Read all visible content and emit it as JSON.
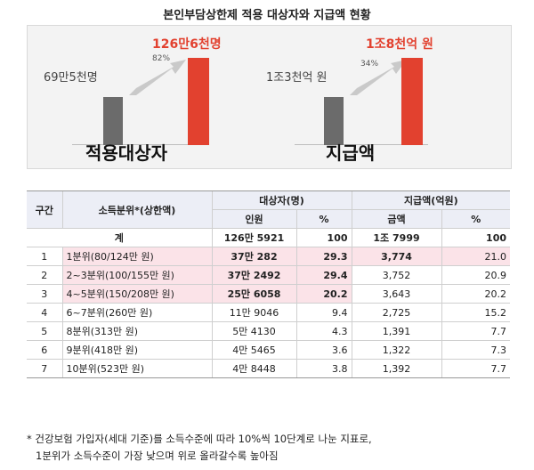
{
  "title": "본인부담상한제 적용 대상자와 지급액 현황",
  "infographic": {
    "left_group": {
      "label": "적용대상자",
      "before": "69만5천명",
      "after": "126만6천명",
      "growth": "82%",
      "before_relative": 0.55,
      "after_relative": 1.0
    },
    "right_group": {
      "label": "지급액",
      "before": "1조3천억 원",
      "after": "1조8천억 원",
      "growth": "34%",
      "before_relative": 0.55,
      "after_relative": 1.0
    },
    "colors": {
      "before": "#6b6b6b",
      "after": "#e2412f"
    }
  },
  "table": {
    "headers": {
      "section": "구간",
      "income": "소득분위*(상한액)",
      "recipients": "대상자(명)",
      "amount": "지급액(억원)",
      "count": "인원",
      "pct": "%",
      "sum": "금액",
      "pct2": "%"
    },
    "total": {
      "label": "계",
      "count": "126만 5921",
      "pct": "100",
      "amount": "1조 7999",
      "pct2": "100"
    },
    "rows": [
      {
        "id": "1",
        "income": "1분위(80/124만 원)",
        "count": "37만 282",
        "pct": "29.3",
        "amount": "3,774",
        "pct2": "21.0"
      },
      {
        "id": "2",
        "income": "2~3분위(100/155만 원)",
        "count": "37만 2492",
        "pct": "29.4",
        "amount": "3,752",
        "pct2": "20.9"
      },
      {
        "id": "3",
        "income": "4~5분위(150/208만 원)",
        "count": "25만 6058",
        "pct": "20.2",
        "amount": "3,643",
        "pct2": "20.2"
      },
      {
        "id": "4",
        "income": "6~7분위(260만 원)",
        "count": "11만 9046",
        "pct": "9.4",
        "amount": "2,725",
        "pct2": "15.2"
      },
      {
        "id": "5",
        "income": "8분위(313만 원)",
        "count": "5만 4130",
        "pct": "4.3",
        "amount": "1,391",
        "pct2": "7.7"
      },
      {
        "id": "6",
        "income": "9분위(418만 원)",
        "count": "4만 5465",
        "pct": "3.6",
        "amount": "1,322",
        "pct2": "7.3"
      },
      {
        "id": "7",
        "income": "10분위(523만 원)",
        "count": "4만 8448",
        "pct": "3.8",
        "amount": "1,392",
        "pct2": "7.7"
      }
    ]
  },
  "footnote": {
    "line1": "* 건강보험 가입자(세대 기준)를 소득수준에 따라 10%씩 10단계로 나눈 지표로,",
    "line2": "1분위가 소득수준이 가장 낮으며 위로 올라갈수록 높아짐"
  }
}
